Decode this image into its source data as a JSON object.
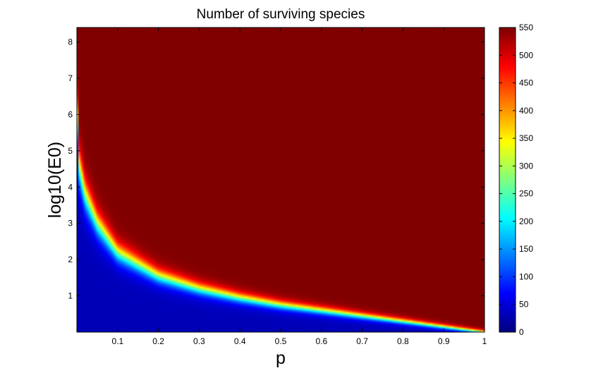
{
  "chart_data": {
    "type": "heatmap",
    "title": "Number of surviving species",
    "xlabel": "p",
    "ylabel": "log10(E0)",
    "xlim": [
      0,
      1
    ],
    "ylim": [
      0,
      8.4
    ],
    "x_ticks": [
      0.1,
      0.2,
      0.3,
      0.4,
      0.5,
      0.6,
      0.7,
      0.8,
      0.9,
      1
    ],
    "x_tick_labels": [
      "0.1",
      "0.2",
      "0.3",
      "0.4",
      "0.5",
      "0.6",
      "0.7",
      "0.8",
      "0.9",
      "1"
    ],
    "y_ticks": [
      1,
      2,
      3,
      4,
      5,
      6,
      7,
      8
    ],
    "y_tick_labels": [
      "1",
      "2",
      "3",
      "4",
      "5",
      "6",
      "7",
      "8"
    ],
    "colorbar": {
      "colormap": "jet",
      "range": [
        0,
        550
      ],
      "ticks": [
        0,
        50,
        100,
        150,
        200,
        250,
        300,
        350,
        400,
        450,
        500,
        550
      ],
      "tick_labels": [
        "0",
        "50",
        "100",
        "150",
        "200",
        "250",
        "300",
        "350",
        "400",
        "450",
        "500",
        "550"
      ]
    },
    "transition_boundary": {
      "description_values_p": [
        0.0,
        0.005,
        0.02,
        0.05,
        0.1,
        0.2,
        0.3,
        0.4,
        0.5,
        0.6,
        0.7,
        0.8,
        0.9,
        1.0
      ],
      "log10_E0_at_half_max": [
        6.5,
        4.6,
        3.8,
        3.0,
        2.2,
        1.55,
        1.2,
        0.95,
        0.75,
        0.6,
        0.45,
        0.3,
        0.15,
        0.0
      ]
    },
    "low_region_value": 30,
    "high_region_value": 550
  },
  "colors": {
    "low": "#00008f",
    "high": "#800000"
  }
}
